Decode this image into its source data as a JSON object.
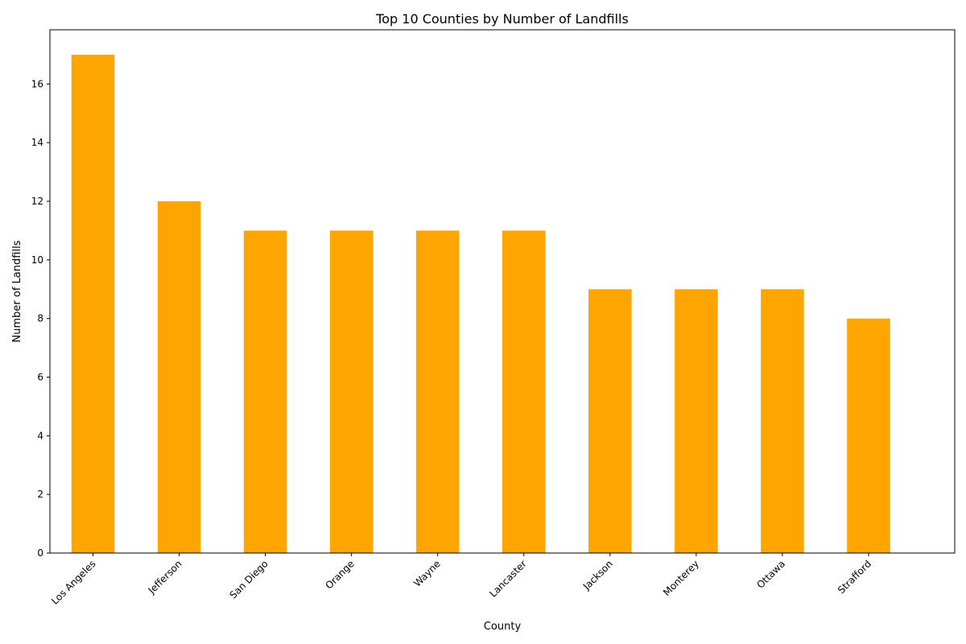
{
  "chart_data": {
    "type": "bar",
    "title": "Top 10 Counties by Number of Landfills",
    "xlabel": "County",
    "ylabel": "Number of Landfills",
    "categories": [
      "Los Angeles",
      "Jefferson",
      "San Diego",
      "Orange",
      "Wayne",
      "Lancaster",
      "Jackson",
      "Monterey",
      "Ottawa",
      "Strafford"
    ],
    "values": [
      17,
      12,
      11,
      11,
      11,
      11,
      9,
      9,
      9,
      8
    ],
    "ylim": [
      0,
      17.85
    ],
    "yticks": [
      0,
      2,
      4,
      6,
      8,
      10,
      12,
      14,
      16
    ],
    "bar_color": "#ffa500",
    "grid": false,
    "legend": "none"
  }
}
